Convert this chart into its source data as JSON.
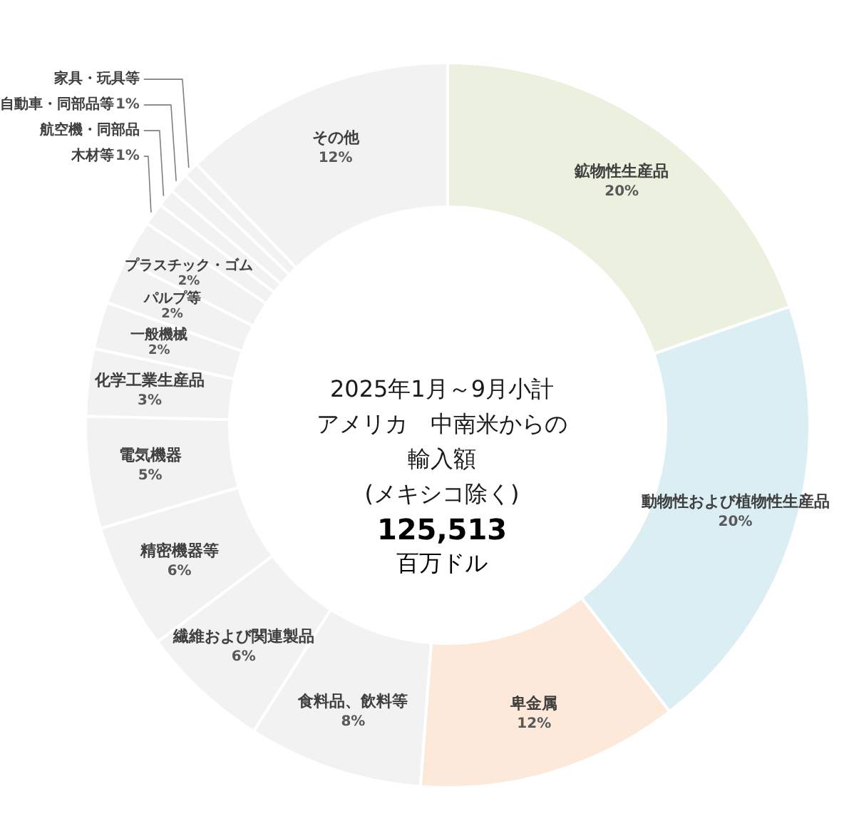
{
  "chart_data": {
    "type": "donut",
    "title": "2025年1月～9月小計アメリカ　中南米からの輸入額(メキシコ除く)",
    "annotations": [
      "125,513",
      "百万ドル"
    ],
    "categories": [
      "鉱物性生産品",
      "動物性および植物性生産品",
      "卑金属",
      "食料品、飲料等",
      "繊維および関連製品",
      "精密機器等",
      "電気機器",
      "化学工業生産品",
      "一般機械",
      "パルプ等",
      "プラスチック・ゴム",
      "木材等",
      "航空機・同部品",
      "自動車・同部品等",
      "家具・玩具等",
      "その他"
    ],
    "values": [
      19.7,
      19.8,
      11.7,
      7.8,
      5.8,
      5.6,
      5.0,
      3.0,
      2.1,
      2.0,
      1.9,
      1.0,
      0.8,
      0.9,
      0.7,
      12.2
    ],
    "value_labels": [
      "20%",
      "20%",
      "12%",
      "8%",
      "6%",
      "6%",
      "5%",
      "3%",
      "2%",
      "2%",
      "2%",
      "1%",
      null,
      "1%",
      null,
      "12%"
    ],
    "colors": [
      "#ebf1de",
      "#daeef3",
      "#fde9d9",
      "#f2f2f2",
      "#f2f2f2",
      "#f2f2f2",
      "#f2f2f2",
      "#f2f2f2",
      "#f2f2f2",
      "#f2f2f2",
      "#f2f2f2",
      "#f2f2f2",
      "#f2f2f2",
      "#f2f2f2",
      "#f2f2f2",
      "#f2f2f2"
    ]
  }
}
